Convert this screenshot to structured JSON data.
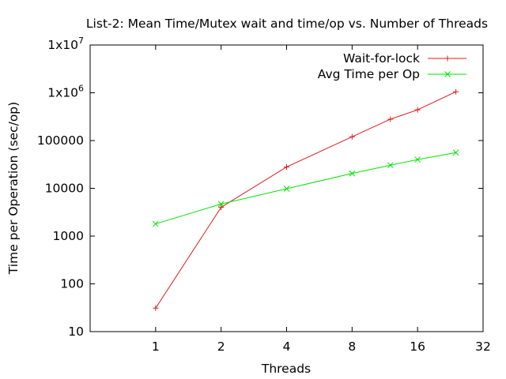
{
  "chart_data": {
    "type": "line",
    "title": "List-2: Mean Time/Mutex wait and time/op vs. Number of Threads",
    "xlabel": "Threads",
    "ylabel": "Time per Operation (sec/op)",
    "x_scale": "log2",
    "y_scale": "log10",
    "xlim": [
      0.5,
      32
    ],
    "ylim": [
      10,
      10000000
    ],
    "x_ticks": [
      {
        "value": 1,
        "label": "1"
      },
      {
        "value": 2,
        "label": "2"
      },
      {
        "value": 4,
        "label": "4"
      },
      {
        "value": 8,
        "label": "8"
      },
      {
        "value": 16,
        "label": "16"
      },
      {
        "value": 32,
        "label": "32"
      }
    ],
    "y_ticks": [
      {
        "value": 10,
        "label": "10"
      },
      {
        "value": 100,
        "label": "100"
      },
      {
        "value": 1000,
        "label": "1000"
      },
      {
        "value": 10000,
        "label": "10000"
      },
      {
        "value": 100000,
        "label": "100000"
      },
      {
        "value": 1000000,
        "label": "1x10",
        "sup": "6"
      },
      {
        "value": 10000000,
        "label": "1x10",
        "sup": "7"
      }
    ],
    "grid": false,
    "legend_position": "top-right",
    "series": [
      {
        "name": "Wait-for-lock",
        "color": "#e41a1c",
        "marker": "plus",
        "x": [
          1,
          2,
          4,
          8,
          12,
          16,
          24
        ],
        "y": [
          31,
          4000,
          28000,
          120000,
          280000,
          440000,
          1050000
        ]
      },
      {
        "name": "Avg Time per Op",
        "color": "#00e600",
        "marker": "cross",
        "x": [
          1,
          2,
          4,
          8,
          12,
          16,
          24
        ],
        "y": [
          1800,
          4700,
          9800,
          20500,
          30500,
          40000,
          56000
        ]
      }
    ]
  }
}
